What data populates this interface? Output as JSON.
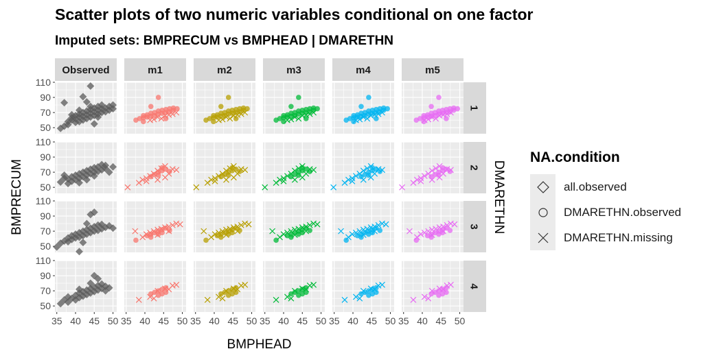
{
  "title": "Scatter plots of two numeric variables conditional on one factor",
  "subtitle": "Imputed sets:  BMPRECUM vs BMPHEAD | DMARETHN",
  "chart_data": {
    "type": "scatter",
    "title": "Scatter plots of two numeric variables conditional on one factor",
    "subtitle": "Imputed sets:  BMPRECUM vs BMPHEAD | DMARETHN",
    "xlabel": "BMPHEAD",
    "ylabel": "BMPRECUM",
    "facet_row_label": "DMARETHN",
    "xlim": [
      34.5,
      51
    ],
    "ylim": [
      42,
      110
    ],
    "x_ticks": [
      35,
      40,
      45,
      50
    ],
    "x_tick_labels": [
      "35",
      "40",
      "45",
      "50"
    ],
    "y_ticks": [
      50,
      70,
      90,
      110
    ],
    "y_tick_labels": [
      "50",
      "70",
      "90",
      "110"
    ],
    "grid": true,
    "legend_position": "right",
    "columns": [
      "Observed",
      "m1",
      "m2",
      "m3",
      "m4",
      "m5"
    ],
    "rows": [
      "1",
      "2",
      "3",
      "4"
    ],
    "series_colors": {
      "Observed": "#595959",
      "m1": "#F8766D",
      "m2": "#B79F00",
      "m3": "#00BA38",
      "m4": "#00B4F0",
      "m5": "#E76BF3"
    },
    "legend": {
      "title": "NA.condition",
      "entries": [
        {
          "label": "all.observed",
          "shape": "diamond"
        },
        {
          "label": "DMARETHN.observed",
          "shape": "circle"
        },
        {
          "label": "DMARETHN.missing",
          "shape": "cross"
        }
      ]
    },
    "observed": {
      "1": [
        [
          36,
          49
        ],
        [
          37,
          83
        ],
        [
          37,
          52
        ],
        [
          38,
          54
        ],
        [
          38,
          58
        ],
        [
          39,
          60
        ],
        [
          39,
          63
        ],
        [
          40,
          57
        ],
        [
          40,
          62
        ],
        [
          40,
          66
        ],
        [
          41,
          58
        ],
        [
          41,
          64
        ],
        [
          41,
          68
        ],
        [
          42,
          60
        ],
        [
          42,
          65
        ],
        [
          42,
          70
        ],
        [
          43,
          62
        ],
        [
          43,
          67
        ],
        [
          43,
          72
        ],
        [
          44,
          64
        ],
        [
          44,
          69
        ],
        [
          44,
          74
        ],
        [
          44,
          78
        ],
        [
          45,
          66
        ],
        [
          45,
          71
        ],
        [
          45,
          76
        ],
        [
          45,
          55
        ],
        [
          46,
          68
        ],
        [
          46,
          73
        ],
        [
          46,
          78
        ],
        [
          47,
          70
        ],
        [
          47,
          75
        ],
        [
          47,
          80
        ],
        [
          48,
          71
        ],
        [
          48,
          76
        ],
        [
          49,
          73
        ],
        [
          49,
          78
        ],
        [
          50,
          75
        ],
        [
          44,
          105
        ],
        [
          42,
          91
        ],
        [
          43,
          84
        ],
        [
          46,
          64
        ],
        [
          41,
          73
        ],
        [
          39,
          67
        ],
        [
          50,
          80
        ]
      ],
      "2": [
        [
          36,
          57
        ],
        [
          37,
          62
        ],
        [
          37,
          66
        ],
        [
          38,
          55
        ],
        [
          38,
          61
        ],
        [
          39,
          58
        ],
        [
          39,
          64
        ],
        [
          40,
          60
        ],
        [
          40,
          66
        ],
        [
          41,
          62
        ],
        [
          41,
          68
        ],
        [
          42,
          64
        ],
        [
          42,
          70
        ],
        [
          43,
          66
        ],
        [
          43,
          72
        ],
        [
          44,
          68
        ],
        [
          44,
          74
        ],
        [
          45,
          70
        ],
        [
          45,
          76
        ],
        [
          46,
          71
        ],
        [
          46,
          77
        ],
        [
          47,
          73
        ],
        [
          48,
          75
        ],
        [
          48,
          79
        ],
        [
          49,
          70
        ],
        [
          50,
          77
        ],
        [
          43,
          60
        ],
        [
          45,
          65
        ],
        [
          47,
          80
        ],
        [
          41,
          56
        ]
      ],
      "3": [
        [
          35,
          49
        ],
        [
          36,
          54
        ],
        [
          37,
          57
        ],
        [
          38,
          56
        ],
        [
          38,
          61
        ],
        [
          39,
          59
        ],
        [
          39,
          64
        ],
        [
          40,
          61
        ],
        [
          40,
          66
        ],
        [
          41,
          62
        ],
        [
          41,
          68
        ],
        [
          42,
          64
        ],
        [
          42,
          70
        ],
        [
          43,
          66
        ],
        [
          43,
          72
        ],
        [
          44,
          68
        ],
        [
          44,
          74
        ],
        [
          45,
          70
        ],
        [
          45,
          76
        ],
        [
          46,
          71
        ],
        [
          46,
          78
        ],
        [
          47,
          73
        ],
        [
          47,
          79
        ],
        [
          48,
          75
        ],
        [
          49,
          77
        ],
        [
          50,
          74
        ],
        [
          44,
          92
        ],
        [
          45,
          95
        ],
        [
          41,
          43
        ],
        [
          43,
          80
        ],
        [
          42,
          55
        ]
      ],
      "4": [
        [
          36,
          53
        ],
        [
          37,
          58
        ],
        [
          38,
          55
        ],
        [
          38,
          62
        ],
        [
          39,
          60
        ],
        [
          40,
          58
        ],
        [
          40,
          64
        ],
        [
          41,
          61
        ],
        [
          41,
          67
        ],
        [
          42,
          63
        ],
        [
          42,
          69
        ],
        [
          43,
          65
        ],
        [
          43,
          71
        ],
        [
          44,
          67
        ],
        [
          44,
          73
        ],
        [
          45,
          69
        ],
        [
          45,
          75
        ],
        [
          46,
          71
        ],
        [
          46,
          77
        ],
        [
          47,
          73
        ],
        [
          47,
          79
        ],
        [
          48,
          70
        ],
        [
          48,
          76
        ],
        [
          49,
          74
        ],
        [
          45,
          90
        ],
        [
          46,
          86
        ],
        [
          44,
          80
        ],
        [
          41,
          72
        ]
      ]
    },
    "imputed": {
      "1": {
        "circle": [
          [
            38,
            60
          ],
          [
            39,
            62
          ],
          [
            40,
            63
          ],
          [
            40,
            66
          ],
          [
            41,
            64
          ],
          [
            41,
            67
          ],
          [
            42,
            65
          ],
          [
            42,
            69
          ],
          [
            43,
            66
          ],
          [
            43,
            70
          ],
          [
            44,
            68
          ],
          [
            44,
            72
          ],
          [
            45,
            69
          ],
          [
            45,
            73
          ],
          [
            46,
            70
          ],
          [
            46,
            74
          ],
          [
            47,
            71
          ],
          [
            47,
            75
          ],
          [
            48,
            73
          ],
          [
            48,
            76
          ],
          [
            49,
            75
          ],
          [
            44,
            90
          ],
          [
            42,
            78
          ],
          [
            46,
            62
          ],
          [
            40,
            58
          ]
        ],
        "cross": [
          [
            41,
            60
          ],
          [
            43,
            64
          ],
          [
            45,
            66
          ],
          [
            47,
            68
          ],
          [
            48,
            70
          ],
          [
            44,
            62
          ],
          [
            46,
            67
          ],
          [
            42,
            61
          ]
        ]
      },
      "2": {
        "circle": [
          [
            42,
            64
          ],
          [
            43,
            67
          ],
          [
            44,
            70
          ],
          [
            45,
            72
          ],
          [
            46,
            74
          ],
          [
            47,
            71
          ],
          [
            44,
            66
          ],
          [
            45,
            76
          ]
        ],
        "cross": [
          [
            35,
            50
          ],
          [
            38,
            56
          ],
          [
            39,
            60
          ],
          [
            40,
            62
          ],
          [
            41,
            65
          ],
          [
            42,
            68
          ],
          [
            43,
            72
          ],
          [
            44,
            75
          ],
          [
            45,
            78
          ],
          [
            46,
            68
          ],
          [
            47,
            74
          ],
          [
            48,
            73
          ],
          [
            40,
            58
          ],
          [
            43,
            60
          ],
          [
            45,
            63
          ]
        ]
      },
      "3": {
        "circle": [
          [
            38,
            58
          ],
          [
            41,
            64
          ],
          [
            42,
            66
          ],
          [
            43,
            68
          ],
          [
            44,
            70
          ],
          [
            45,
            72
          ],
          [
            46,
            74
          ],
          [
            47,
            71
          ],
          [
            42,
            62
          ],
          [
            44,
            66
          ],
          [
            45,
            68
          ]
        ],
        "cross": [
          [
            37,
            70
          ],
          [
            39,
            62
          ],
          [
            40,
            66
          ],
          [
            41,
            68
          ],
          [
            42,
            70
          ],
          [
            43,
            72
          ],
          [
            44,
            73
          ],
          [
            45,
            75
          ],
          [
            46,
            76
          ],
          [
            47,
            78
          ],
          [
            48,
            80
          ],
          [
            49,
            79
          ],
          [
            43,
            65
          ],
          [
            46,
            70
          ]
        ]
      },
      "4": {
        "circle": [
          [
            42,
            66
          ],
          [
            43,
            68
          ],
          [
            44,
            70
          ],
          [
            44,
            64
          ],
          [
            45,
            72
          ],
          [
            46,
            74
          ],
          [
            46,
            68
          ],
          [
            45,
            66
          ]
        ],
        "cross": [
          [
            38,
            58
          ],
          [
            41,
            62
          ],
          [
            43,
            70
          ],
          [
            45,
            73
          ],
          [
            47,
            77
          ],
          [
            48,
            78
          ],
          [
            42,
            60
          ],
          [
            46,
            72
          ]
        ]
      }
    }
  },
  "legend_title": "NA.condition",
  "legend_labels": [
    "all.observed",
    "DMARETHN.observed",
    "DMARETHN.missing"
  ]
}
